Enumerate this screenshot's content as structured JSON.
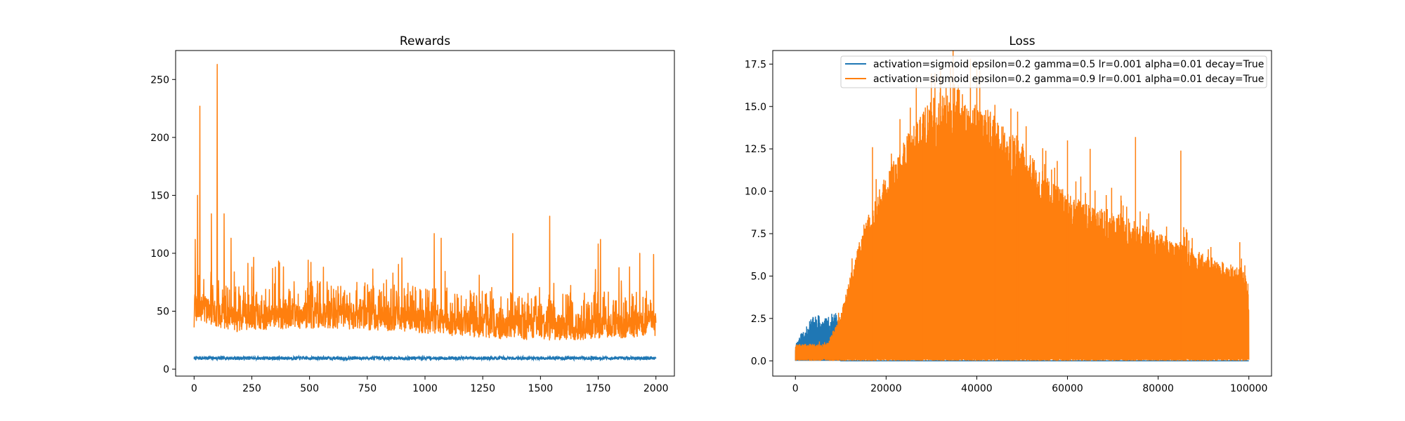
{
  "chart_data": [
    {
      "type": "line",
      "title": "Rewards",
      "xlabel": "",
      "ylabel": "",
      "xlim": [
        -80,
        2080
      ],
      "ylim": [
        -6,
        275
      ],
      "xticks": [
        0,
        250,
        500,
        750,
        1000,
        1250,
        1500,
        1750,
        2000
      ],
      "yticks": [
        0,
        50,
        100,
        150,
        200,
        250
      ],
      "grid": false,
      "series": [
        {
          "color": "#1f77b4",
          "x_range": [
            0,
            2000
          ],
          "n_points": 2000,
          "baseline": 9.5,
          "noise": 1.5,
          "peaks": []
        },
        {
          "color": "#ff7f0e",
          "x_range": [
            0,
            2000
          ],
          "n_points": 2000,
          "peaks": [
            [
              0,
              36
            ],
            [
              5,
              112
            ],
            [
              15,
              150
            ],
            [
              25,
              227
            ],
            [
              40,
              60
            ],
            [
              75,
              134
            ],
            [
              100,
              263
            ],
            [
              130,
              134
            ],
            [
              160,
              113
            ],
            [
              250,
              88
            ],
            [
              370,
              92
            ],
            [
              560,
              88
            ],
            [
              900,
              96
            ],
            [
              1040,
              117
            ],
            [
              1070,
              113
            ],
            [
              1380,
              117
            ],
            [
              1540,
              132
            ],
            [
              1750,
              108
            ],
            [
              1760,
              112
            ],
            [
              1930,
              100
            ],
            [
              1990,
              99
            ],
            [
              2000,
              40
            ]
          ]
        }
      ]
    },
    {
      "type": "line",
      "title": "Loss",
      "xlabel": "",
      "ylabel": "",
      "xlim": [
        -5000,
        105000
      ],
      "ylim": [
        -0.9,
        18.3
      ],
      "xticks": [
        0,
        20000,
        40000,
        60000,
        80000,
        100000
      ],
      "ytick_labels": [
        "0.0",
        "2.5",
        "5.0",
        "7.5",
        "10.0",
        "12.5",
        "15.0",
        "17.5"
      ],
      "yticks": [
        0,
        2.5,
        5,
        7.5,
        10,
        12.5,
        15,
        17.5
      ],
      "grid": false,
      "legend_position": "top-right",
      "series": [
        {
          "name": "activation=sigmoid epsilon=0.2 gamma=0.5 lr=0.001 alpha=0.01 decay=True",
          "color": "#1f77b4",
          "x_range": [
            0,
            10000
          ],
          "peaks": [
            [
              0,
              1.0
            ],
            [
              1000,
              1.6
            ],
            [
              2000,
              1.8
            ],
            [
              3000,
              2.3
            ],
            [
              4000,
              2.7
            ],
            [
              5000,
              2.8
            ],
            [
              6000,
              2.6
            ],
            [
              7000,
              2.5
            ],
            [
              8000,
              2.8
            ],
            [
              9000,
              2.9
            ],
            [
              10000,
              0.3
            ]
          ]
        },
        {
          "name": "activation=sigmoid epsilon=0.2 gamma=0.9 lr=0.001 alpha=0.01 decay=True",
          "color": "#ff7f0e",
          "x_range": [
            0,
            100000
          ],
          "envelope": [
            [
              0,
              1.0
            ],
            [
              7000,
              1.0
            ],
            [
              10000,
              2.8
            ],
            [
              15000,
              8.0
            ],
            [
              20000,
              11.0
            ],
            [
              25000,
              13.5
            ],
            [
              30000,
              15.5
            ],
            [
              35000,
              16.5
            ],
            [
              40000,
              15.3
            ],
            [
              45000,
              14.3
            ],
            [
              50000,
              13.0
            ],
            [
              55000,
              11.0
            ],
            [
              60000,
              10.0
            ],
            [
              65000,
              9.2
            ],
            [
              70000,
              9.0
            ],
            [
              75000,
              8.2
            ],
            [
              80000,
              7.6
            ],
            [
              85000,
              7.0
            ],
            [
              90000,
              6.3
            ],
            [
              95000,
              5.8
            ],
            [
              99000,
              5.5
            ],
            [
              100000,
              3.8
            ]
          ],
          "spikes": [
            [
              17000,
              12.6
            ],
            [
              28000,
              14.0
            ],
            [
              32000,
              17.0
            ],
            [
              40000,
              17.3
            ],
            [
              44000,
              15.1
            ],
            [
              49000,
              14.7
            ],
            [
              60000,
              13.0
            ],
            [
              65000,
              12.5
            ],
            [
              75000,
              13.2
            ],
            [
              85000,
              12.4
            ],
            [
              98000,
              7.0
            ]
          ]
        }
      ]
    }
  ]
}
